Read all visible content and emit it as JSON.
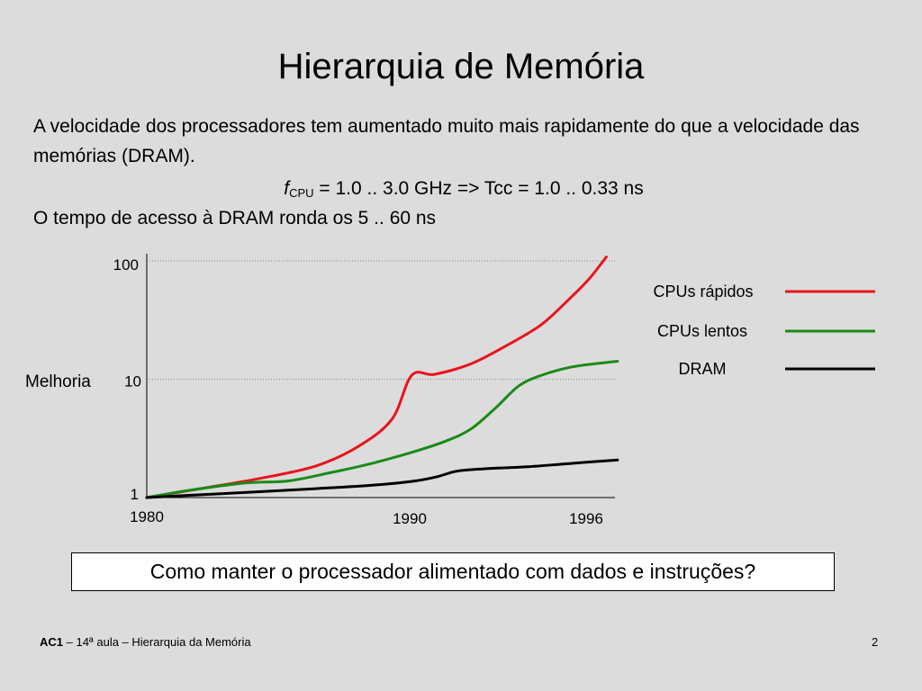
{
  "slide": {
    "title": "Hierarquia de Memória",
    "paragraph1": "A velocidade dos processadores tem aumentado muito mais rapidamente do que a velocidade das memórias (DRAM).",
    "formula_f": "f",
    "formula_sub": "CPU",
    "formula_rest": " = 1.0 .. 3.0 GHz => Tcc = 1.0 .. 0.33 ns",
    "paragraph2": "O tempo de acesso à DRAM ronda os 5 .. 60 ns",
    "question": "Como manter o processador alimentado com dados e instruções?",
    "footer_course": "AC1",
    "footer_rest": " – 14ª aula – Hierarquia  da Memória",
    "page_number": "2"
  },
  "chart_data": {
    "type": "line",
    "y_scale": "log",
    "ylabel": "Melhoria",
    "xlabel": "",
    "xlim": [
      1980,
      1996
    ],
    "ylim": [
      1,
      100
    ],
    "x_ticks": [
      "1980",
      "1990",
      "1996"
    ],
    "y_ticks": [
      "1",
      "10",
      "100"
    ],
    "grid": "horizontal dotted",
    "legend": "right",
    "series": [
      {
        "name": "CPUs rápidos",
        "color": "#e8141b",
        "points": [
          [
            1980,
            1.0
          ],
          [
            1982,
            1.2
          ],
          [
            1984,
            1.45
          ],
          [
            1986,
            1.85
          ],
          [
            1987.5,
            2.7
          ],
          [
            1988.7,
            4.6
          ],
          [
            1989.4,
            10.8
          ],
          [
            1990.2,
            11.0
          ],
          [
            1991.5,
            13.5
          ],
          [
            1992.8,
            19.5
          ],
          [
            1994,
            29
          ],
          [
            1995,
            48
          ],
          [
            1995.7,
            71
          ],
          [
            1996.3,
            108
          ]
        ]
      },
      {
        "name": "CPUs lentos",
        "color": "#1a8a17",
        "points": [
          [
            1980,
            1.0
          ],
          [
            1981.5,
            1.15
          ],
          [
            1983.5,
            1.33
          ],
          [
            1985,
            1.38
          ],
          [
            1986.5,
            1.62
          ],
          [
            1988,
            1.95
          ],
          [
            1989.5,
            2.45
          ],
          [
            1990.6,
            3.0
          ],
          [
            1991.5,
            3.8
          ],
          [
            1992.4,
            5.8
          ],
          [
            1993.2,
            8.8
          ],
          [
            1994,
            10.8
          ],
          [
            1995,
            12.6
          ],
          [
            1996,
            13.6
          ],
          [
            1996.7,
            14.2
          ]
        ]
      },
      {
        "name": "DRAM",
        "color": "#000000",
        "points": [
          [
            1980,
            1.0
          ],
          [
            1982,
            1.06
          ],
          [
            1984,
            1.12
          ],
          [
            1986,
            1.19
          ],
          [
            1988,
            1.27
          ],
          [
            1989.5,
            1.38
          ],
          [
            1990.3,
            1.5
          ],
          [
            1991,
            1.67
          ],
          [
            1992,
            1.75
          ],
          [
            1993.5,
            1.82
          ],
          [
            1995,
            1.94
          ],
          [
            1996.7,
            2.08
          ]
        ]
      }
    ]
  }
}
